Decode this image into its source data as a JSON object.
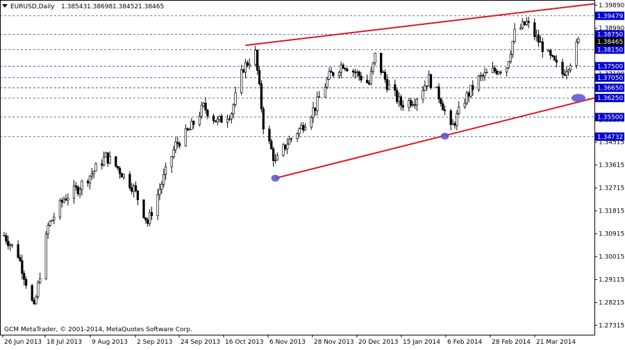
{
  "window": {
    "title_symbol": "EURUSD,Daily",
    "ohlc_values": [
      "1.38543",
      "1.38698",
      "1.38452",
      "1.38465"
    ],
    "copyright": "GCM MetaTrader, © 2001-2014, MetaQuotes Software Corp."
  },
  "colors": {
    "background": "#ffffff",
    "candle": "#000000",
    "level_line": "#2b3a9a",
    "level_label_bg": "#0000cc",
    "level_label_text": "#ffffff",
    "current_price_bg": "#000000",
    "trendline": "#e0141e",
    "touch_marker": "#5b4fd0"
  },
  "chart_data": {
    "type": "candlestick",
    "title": "EURUSD,Daily",
    "ylim": [
      1.2695,
      1.401
    ],
    "y_ticks": [
      "1.39890",
      "1.38990",
      "1.37190",
      "1.36290",
      "1.35390",
      "1.34515",
      "1.33615",
      "1.32715",
      "1.31815",
      "1.30915",
      "1.30015",
      "1.29115",
      "1.28215",
      "1.27315"
    ],
    "x_ticks": [
      "26 Jun 2013",
      "18 Jul 2013",
      "9 Aug 2013",
      "2 Sep 2013",
      "24 Sep 2013",
      "16 Oct 2013",
      "6 Nov 2013",
      "28 Nov 2013",
      "20 Dec 2013",
      "15 Jan 2014",
      "6 Feb 2014",
      "28 Feb 2014",
      "21 Mar 2014"
    ],
    "x_range": [
      "2013-06-24",
      "2014-04-08"
    ],
    "price_anchors": [
      [
        "2013-06-24",
        1.3085
      ],
      [
        "2013-07-01",
        1.301
      ],
      [
        "2013-07-09",
        1.2795
      ],
      [
        "2013-07-16",
        1.312
      ],
      [
        "2013-07-24",
        1.323
      ],
      [
        "2013-07-31",
        1.327
      ],
      [
        "2013-08-07",
        1.333
      ],
      [
        "2013-08-14",
        1.3395
      ],
      [
        "2013-08-20",
        1.335
      ],
      [
        "2013-08-28",
        1.327
      ],
      [
        "2013-09-04",
        1.3135
      ],
      [
        "2013-09-11",
        1.329
      ],
      [
        "2013-09-18",
        1.344
      ],
      [
        "2013-09-25",
        1.35
      ],
      [
        "2013-10-02",
        1.359
      ],
      [
        "2013-10-09",
        1.353
      ],
      [
        "2013-10-16",
        1.357
      ],
      [
        "2013-10-22",
        1.3745
      ],
      [
        "2013-10-28",
        1.38
      ],
      [
        "2013-11-01",
        1.352
      ],
      [
        "2013-11-07",
        1.337
      ],
      [
        "2013-11-13",
        1.345
      ],
      [
        "2013-11-20",
        1.351
      ],
      [
        "2013-11-27",
        1.359
      ],
      [
        "2013-12-04",
        1.371
      ],
      [
        "2013-12-11",
        1.376
      ],
      [
        "2013-12-18",
        1.372
      ],
      [
        "2013-12-24",
        1.368
      ],
      [
        "2013-12-27",
        1.379
      ],
      [
        "2014-01-02",
        1.368
      ],
      [
        "2014-01-09",
        1.36
      ],
      [
        "2014-01-16",
        1.362
      ],
      [
        "2014-01-23",
        1.37
      ],
      [
        "2014-01-29",
        1.362
      ],
      [
        "2014-02-03",
        1.35
      ],
      [
        "2014-02-10",
        1.362
      ],
      [
        "2014-02-17",
        1.37
      ],
      [
        "2014-02-24",
        1.373
      ],
      [
        "2014-03-03",
        1.375
      ],
      [
        "2014-03-07",
        1.388
      ],
      [
        "2014-03-13",
        1.392
      ],
      [
        "2014-03-18",
        1.386
      ],
      [
        "2014-03-24",
        1.379
      ],
      [
        "2014-03-31",
        1.372
      ],
      [
        "2014-04-04",
        1.377
      ],
      [
        "2014-04-08",
        1.3845
      ]
    ],
    "horizontal_levels": [
      "1.39479",
      "1.38750",
      "1.38150",
      "1.37500",
      "1.37050",
      "1.36650",
      "1.36250",
      "1.35500",
      "1.34732"
    ],
    "current_price": "1.38465",
    "trendlines": [
      {
        "from": [
          "2013-10-23",
          1.3832
        ],
        "to": [
          "2014-04-19",
          1.3995
        ]
      },
      {
        "from": [
          "2013-11-07",
          1.331
        ],
        "to": [
          "2014-04-19",
          1.3625
        ]
      }
    ],
    "touch_markers": [
      [
        "2013-11-07",
        1.331
      ],
      [
        "2014-01-31",
        1.3475
      ],
      [
        "2014-04-08",
        1.3625
      ]
    ]
  }
}
